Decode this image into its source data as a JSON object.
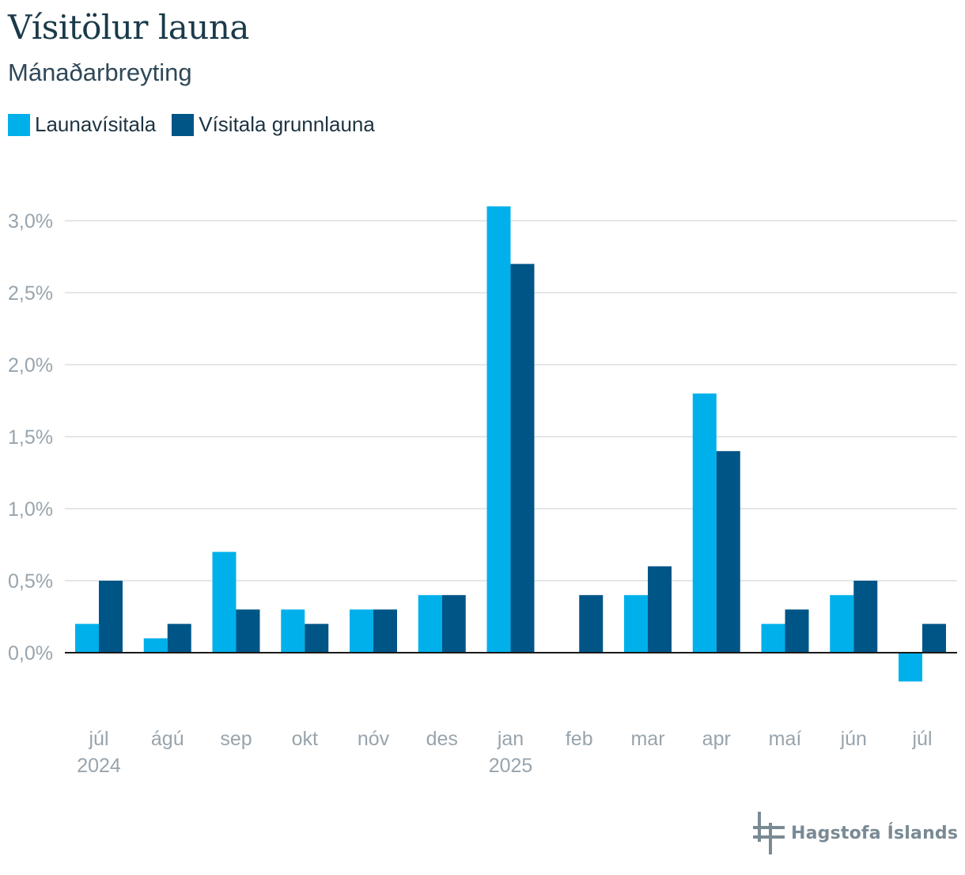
{
  "header": {
    "title": "Vísitölur launa",
    "subtitle": "Mánaðarbreyting"
  },
  "logo": {
    "text": "Hagstofa Íslands",
    "icon": "hagstofa-logo-icon",
    "color": "#7a8a94"
  },
  "colors": {
    "series_1": "#00b0eb",
    "series_2": "#005587",
    "grid": "#dcdfe2",
    "axis_text": "#98a4ad",
    "zero_line": "#1a1a1a"
  },
  "chart_data": {
    "type": "bar",
    "title": "Vísitölur launa",
    "subtitle": "Mánaðarbreyting",
    "xlabel": "",
    "ylabel": "",
    "categories": [
      "júl",
      "ágú",
      "sep",
      "okt",
      "nóv",
      "des",
      "jan",
      "feb",
      "mar",
      "apr",
      "maí",
      "jún",
      "júl"
    ],
    "year_labels": [
      "2024",
      "",
      "",
      "",
      "",
      "",
      "2025",
      "",
      "",
      "",
      "",
      "",
      ""
    ],
    "series": [
      {
        "name": "Launavísitala",
        "color": "#00b0eb",
        "values": [
          0.2,
          0.1,
          0.7,
          0.3,
          0.3,
          0.4,
          3.1,
          0.0,
          0.4,
          1.8,
          0.2,
          0.4,
          -0.2
        ]
      },
      {
        "name": "Vísitala grunnlauna",
        "color": "#005587",
        "values": [
          0.5,
          0.2,
          0.3,
          0.2,
          0.3,
          0.4,
          2.7,
          0.4,
          0.6,
          1.4,
          0.3,
          0.5,
          0.2
        ]
      }
    ],
    "ylim": [
      -0.4,
      3.2
    ],
    "yticks": [
      0.0,
      0.5,
      1.0,
      1.5,
      2.0,
      2.5,
      3.0
    ],
    "ytick_labels": [
      "0,0%",
      "0,5%",
      "1,0%",
      "1,5%",
      "2,0%",
      "2,5%",
      "3,0%"
    ],
    "grid": true,
    "legend_position": "top-left"
  }
}
